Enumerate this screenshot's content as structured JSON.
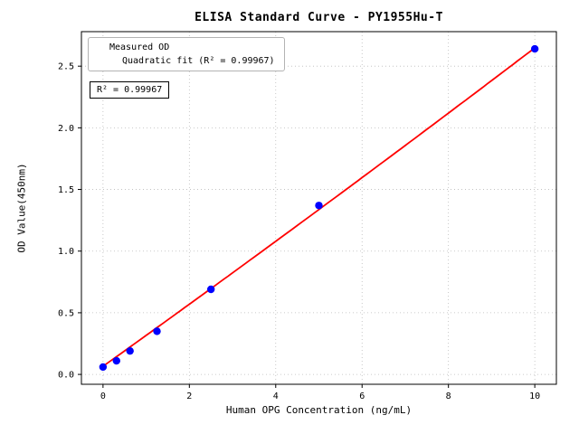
{
  "chart": {
    "title": "ELISA Standard Curve - PY1955Hu-T",
    "xlabel": "Human OPG Concentration (ng/mL)",
    "ylabel": "OD Value(450nm)",
    "legend": {
      "measured": "Measured OD",
      "fit": "Quadratic fit (R² = 0.99967)"
    },
    "annotation": "R² = 0.99967"
  },
  "chart_data": {
    "type": "scatter",
    "title": "ELISA Standard Curve - PY1955Hu-T",
    "xlabel": "Human OPG Concentration (ng/mL)",
    "ylabel": "OD Value(450nm)",
    "x": [
      0,
      0.3125,
      0.625,
      1.25,
      2.5,
      5,
      10
    ],
    "y": [
      0.06,
      0.11,
      0.19,
      0.35,
      0.69,
      1.37,
      2.64
    ],
    "series_name": "Measured OD",
    "fit": {
      "name": "Quadratic fit",
      "type": "quadratic",
      "a": 0.0008,
      "b": 0.2503,
      "c": 0.0655,
      "r2": 0.99967,
      "x_range": [
        0,
        10
      ]
    },
    "xlim": [
      -0.5,
      10.5
    ],
    "ylim": [
      -0.08,
      2.78
    ],
    "xticks": [
      0,
      2,
      4,
      6,
      8,
      10
    ],
    "xtick_labels": [
      "0",
      "2",
      "4",
      "6",
      "8",
      "10"
    ],
    "yticks": [
      0.0,
      0.5,
      1.0,
      1.5,
      2.0,
      2.5
    ],
    "ytick_labels": [
      "0.0",
      "0.5",
      "1.0",
      "1.5",
      "2.0",
      "2.5"
    ],
    "grid": true,
    "legend_position": "upper left",
    "colors": {
      "points": "#0000ff",
      "fit_line": "#ff0000",
      "grid": "#bbbbbb",
      "frame": "#000000"
    }
  }
}
